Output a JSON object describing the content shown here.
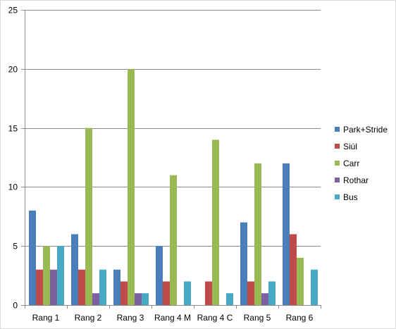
{
  "chart_data": {
    "type": "bar",
    "categories": [
      "Rang 1",
      "Rang 2",
      "Rang 3",
      "Rang 4 M",
      "Rang 4 C",
      "Rang 5",
      "Rang 6"
    ],
    "series": [
      {
        "name": "Park+Stride",
        "color": "#4a7ebb",
        "values": [
          8,
          6,
          3,
          5,
          0,
          7,
          12
        ]
      },
      {
        "name": "Siúl",
        "color": "#be4b48",
        "values": [
          3,
          3,
          2,
          2,
          2,
          2,
          6
        ]
      },
      {
        "name": "Carr",
        "color": "#98b954",
        "values": [
          5,
          15,
          20,
          11,
          14,
          12,
          4
        ]
      },
      {
        "name": "Rothar",
        "color": "#7d60a0",
        "values": [
          3,
          1,
          1,
          0,
          0,
          1,
          0
        ]
      },
      {
        "name": "Bus",
        "color": "#46aac5",
        "values": [
          5,
          3,
          1,
          2,
          1,
          2,
          3
        ]
      }
    ],
    "ylim": [
      0,
      25
    ],
    "yticks": [
      0,
      5,
      10,
      15,
      20,
      25
    ],
    "grid": true,
    "legend": "right"
  }
}
